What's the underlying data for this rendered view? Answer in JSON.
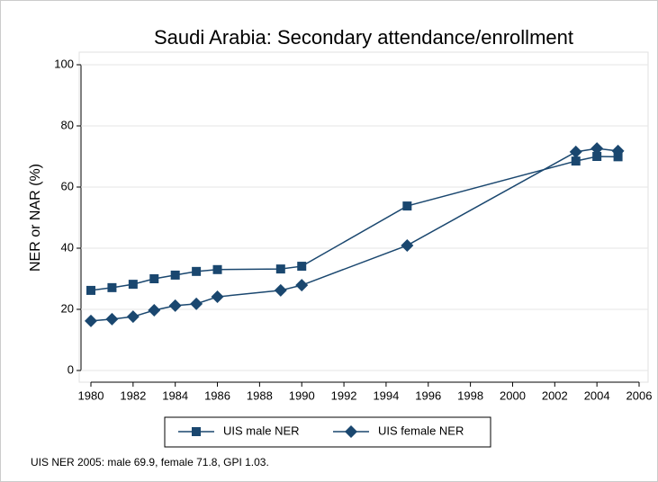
{
  "chart_data": {
    "type": "line",
    "title": "Saudi Arabia: Secondary attendance/enrollment",
    "ylabel": "NER or NAR (%)",
    "note": "UIS NER 2005: male 69.9, female 71.8, GPI 1.03.",
    "x": [
      1980,
      1981,
      1982,
      1983,
      1984,
      1985,
      1986,
      1989,
      1990,
      1995,
      2003,
      2004,
      2005
    ],
    "series": [
      {
        "name": "UIS male NER",
        "color": "#1a476f",
        "marker": "square",
        "values": [
          26.2,
          27.1,
          28.2,
          30.0,
          31.2,
          32.4,
          33.0,
          33.2,
          34.1,
          53.8,
          68.5,
          70.0,
          69.9
        ]
      },
      {
        "name": "UIS female NER",
        "color": "#1a476f",
        "marker": "diamond",
        "values": [
          16.2,
          16.8,
          17.6,
          19.7,
          21.2,
          21.8,
          24.1,
          26.2,
          27.9,
          40.9,
          71.5,
          72.6,
          71.8
        ]
      }
    ],
    "xlim": [
      1980,
      2006
    ],
    "xticks": [
      1980,
      1982,
      1984,
      1986,
      1988,
      1990,
      1992,
      1994,
      1996,
      1998,
      2000,
      2002,
      2004,
      2006
    ],
    "ylim": [
      0,
      100
    ],
    "yticks": [
      0,
      20,
      40,
      60,
      80,
      100
    ],
    "grid": true,
    "legend": "bottom"
  }
}
